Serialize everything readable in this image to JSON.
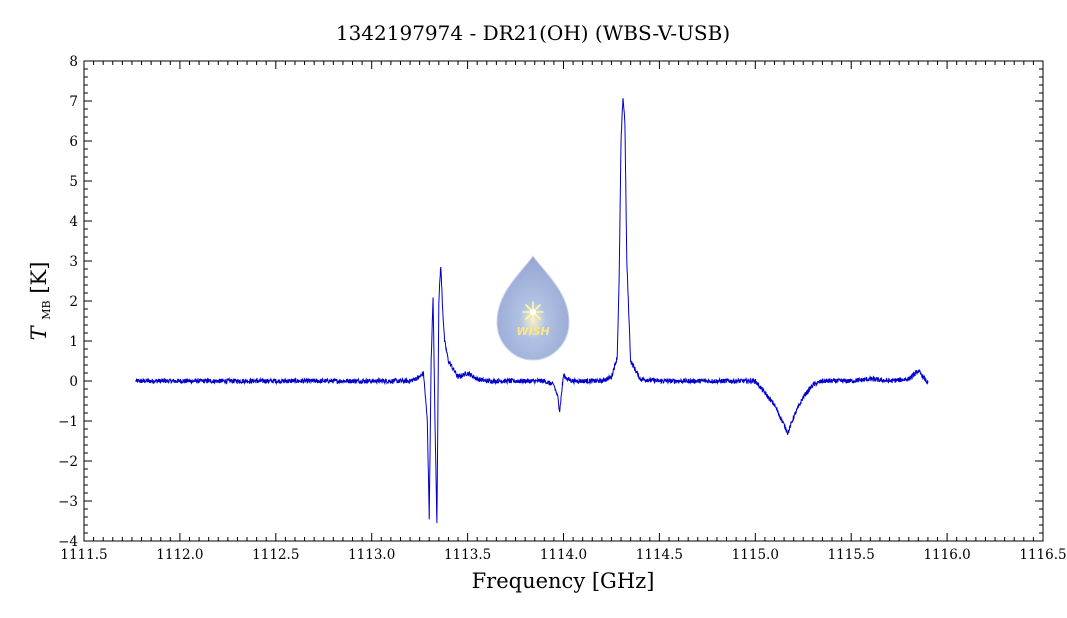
{
  "chart_data": {
    "type": "line",
    "title": "1342197974 - DR21(OH) (WBS-V-USB)",
    "xlabel": "Frequency [GHz]",
    "ylabel_main": "T",
    "ylabel_sub": "MB",
    "ylabel_unit": "[K]",
    "xlim": [
      1111.5,
      1116.5
    ],
    "ylim": [
      -4,
      8
    ],
    "x_ticks": [
      "1111.5",
      "1112.0",
      "1112.5",
      "1113.0",
      "1113.5",
      "1114.0",
      "1114.5",
      "1115.0",
      "1115.5",
      "1116.0",
      "1116.5"
    ],
    "y_ticks": [
      "−4",
      "−3",
      "−2",
      "−1",
      "0",
      "1",
      "2",
      "3",
      "4",
      "5",
      "6",
      "7",
      "8"
    ],
    "line_color": "#0000cc",
    "grid": false,
    "series": [
      {
        "x": [
          1111.77,
          1112.0,
          1112.5,
          1113.0,
          1113.2,
          1113.25,
          1113.27,
          1113.28,
          1113.29,
          1113.3,
          1113.31,
          1113.32,
          1113.33,
          1113.34,
          1113.35,
          1113.36,
          1113.37,
          1113.38,
          1113.4,
          1113.45,
          1113.5,
          1113.55,
          1113.6,
          1113.7,
          1113.9,
          1113.95,
          1113.97,
          1113.98,
          1113.99,
          1114.0,
          1114.02,
          1114.05,
          1114.1,
          1114.2,
          1114.25,
          1114.28,
          1114.29,
          1114.3,
          1114.31,
          1114.32,
          1114.33,
          1114.35,
          1114.4,
          1114.5,
          1114.8,
          1115.0,
          1115.05,
          1115.1,
          1115.15,
          1115.17,
          1115.2,
          1115.25,
          1115.3,
          1115.35,
          1115.4,
          1115.5,
          1115.6,
          1115.7,
          1115.8,
          1115.85,
          1115.9
        ],
        "y": [
          0.0,
          0.0,
          0.0,
          0.0,
          0.0,
          0.1,
          0.2,
          -0.4,
          -1.0,
          -3.4,
          0.5,
          2.1,
          -1.0,
          -3.6,
          2.0,
          2.9,
          1.8,
          1.0,
          0.5,
          0.1,
          0.2,
          0.05,
          0.0,
          0.0,
          0.0,
          -0.1,
          -0.4,
          -0.75,
          -0.3,
          0.15,
          0.05,
          0.0,
          0.0,
          0.0,
          0.1,
          0.6,
          2.5,
          6.0,
          7.1,
          6.5,
          3.0,
          0.5,
          0.05,
          0.0,
          0.0,
          0.0,
          -0.3,
          -0.6,
          -1.1,
          -1.3,
          -0.9,
          -0.4,
          -0.1,
          0.0,
          0.0,
          0.0,
          0.05,
          0.0,
          0.05,
          0.25,
          -0.05
        ]
      }
    ]
  },
  "watermark": {
    "text": "WISH",
    "icon": "water-drop-logo"
  }
}
